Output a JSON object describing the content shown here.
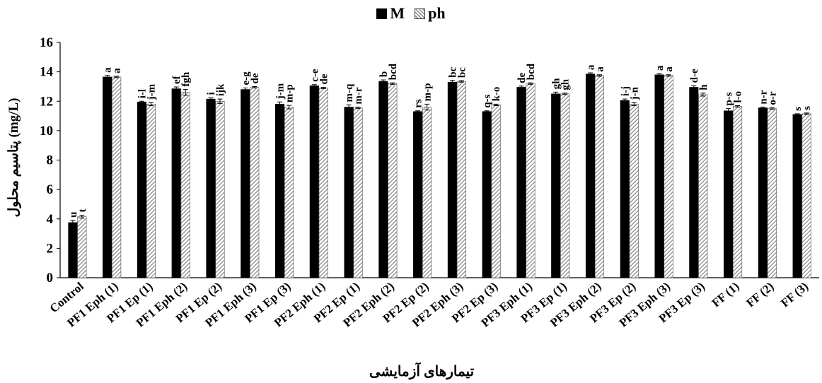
{
  "chart_data": {
    "type": "bar",
    "title": "",
    "xlabel": "تیمارهای آزمایشی",
    "ylabel": "پتاسیم محلول (mg/L)",
    "ylim": [
      0,
      16
    ],
    "yticks": [
      0,
      2,
      4,
      6,
      8,
      10,
      12,
      14,
      16
    ],
    "grid": false,
    "legend_position": "top-center",
    "categories": [
      "Control",
      "PF1 Eph (1)",
      "PF1 Ep (1)",
      "PF1 Eph (2)",
      "PF1 Ep (2)",
      "PF1 Eph (3)",
      "PF1 Ep (3)",
      "PF2 Eph (1)",
      "PF2 Ep (1)",
      "PF2 Eph (2)",
      "PF2 Ep (2)",
      "PF2 Eph (3)",
      "PF2 Ep (3)",
      "PF3 Eph (1)",
      "PF3 Ep (1)",
      "PF3 Eph (2)",
      "PF3 Ep (2)",
      "PF3 Eph (3)",
      "PF3 Ep (3)",
      "FF (1)",
      "FF (2)",
      "FF (3)"
    ],
    "series": [
      {
        "name": "M",
        "color": "#000000",
        "pattern": "solid",
        "values": [
          3.75,
          13.65,
          11.95,
          12.85,
          12.15,
          12.8,
          11.8,
          13.05,
          11.6,
          13.35,
          11.3,
          13.3,
          11.3,
          12.95,
          12.5,
          13.85,
          12.05,
          13.8,
          12.95,
          11.35,
          11.55,
          11.1
        ],
        "errors": [
          0.15,
          0.1,
          0.05,
          0.12,
          0.08,
          0.1,
          0.15,
          0.08,
          0.15,
          0.1,
          0.05,
          0.12,
          0.05,
          0.08,
          0.12,
          0.08,
          0.1,
          0.08,
          0.1,
          0.15,
          0.05,
          0.05
        ],
        "letters": [
          "u",
          "a",
          "i-l",
          "ef",
          "i",
          "e-g",
          "j-m",
          "c-e",
          "m-q",
          "b",
          "rs",
          "bc",
          "q-s",
          "de",
          "gh",
          "a",
          "i-j",
          "a",
          "d-e",
          "p-s",
          "n-r",
          "s"
        ]
      },
      {
        "name": "ph",
        "color": "#9a9a9a",
        "pattern": "hatched",
        "values": [
          4.15,
          13.65,
          11.8,
          12.6,
          12.0,
          12.95,
          11.6,
          12.9,
          11.55,
          13.2,
          11.6,
          13.35,
          11.75,
          13.2,
          12.5,
          13.75,
          11.8,
          13.75,
          12.45,
          11.65,
          11.5,
          11.15
        ],
        "errors": [
          0.1,
          0.05,
          0.1,
          0.2,
          0.15,
          0.05,
          0.12,
          0.05,
          0.05,
          0.05,
          0.2,
          0.05,
          0.05,
          0.05,
          0.05,
          0.05,
          0.1,
          0.05,
          0.1,
          0.05,
          0.05,
          0.05
        ],
        "letters": [
          "t",
          "a",
          "j-m",
          "fgh",
          "ijk",
          "de",
          "m-p",
          "de",
          "m-r",
          "bcd",
          "m-p",
          "bc",
          "k-o",
          "bcd",
          "gh",
          "a",
          "j-n",
          "a",
          "h",
          "l-o",
          "o-r",
          "s"
        ]
      }
    ]
  }
}
